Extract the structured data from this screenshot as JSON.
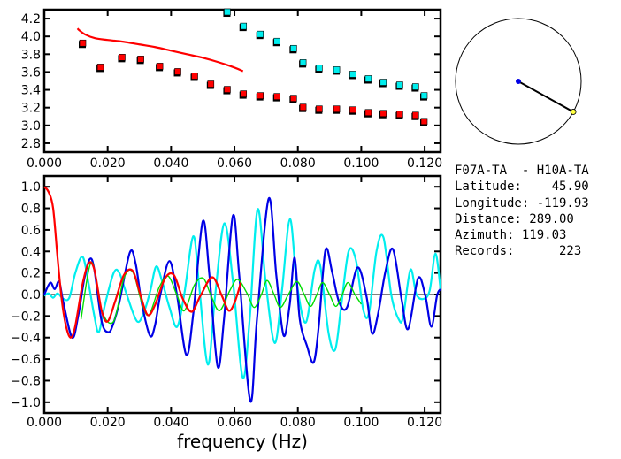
{
  "info": {
    "title": "F07A-TA  - H10A-TA",
    "lines": [
      "Latitude:    45.90",
      "Longitude: -119.93",
      "Distance: 289.00",
      "Azimuth: 119.03",
      "Records:      223"
    ]
  },
  "azimuth_deg": 119.03,
  "colors": {
    "red": "#ff0000",
    "cyan": "#00eeee",
    "blue": "#0000e6",
    "green": "#00dd00",
    "yellow": "#ffff40"
  },
  "chart_data": [
    {
      "type": "scatter",
      "xlim": [
        0,
        0.125
      ],
      "ylim": [
        2.7,
        4.3
      ],
      "x_ticks": [
        "0.000",
        "0.020",
        "0.040",
        "0.060",
        "0.080",
        "0.100",
        "0.120"
      ],
      "y_ticks": [
        "2.8",
        "3.0",
        "3.2",
        "3.4",
        "3.6",
        "3.8",
        "4.0",
        "4.2"
      ],
      "series": [
        {
          "color": "red",
          "mode": "markers",
          "x": [
            0.012,
            0.0176,
            0.0244,
            0.0303,
            0.0363,
            0.042,
            0.0473,
            0.0524,
            0.0576,
            0.0627,
            0.068,
            0.0733,
            0.0785,
            0.0815,
            0.0866,
            0.0921,
            0.0972,
            0.1021,
            0.1068,
            0.112,
            0.117,
            0.1197
          ],
          "y": [
            3.92,
            3.65,
            3.76,
            3.74,
            3.66,
            3.6,
            3.55,
            3.46,
            3.4,
            3.35,
            3.33,
            3.32,
            3.3,
            3.2,
            3.18,
            3.18,
            3.17,
            3.14,
            3.13,
            3.12,
            3.11,
            3.04
          ]
        },
        {
          "color": "cyan",
          "mode": "markers",
          "x": [
            0.0576,
            0.0627,
            0.068,
            0.0733,
            0.0785,
            0.0815,
            0.0866,
            0.0921,
            0.0972,
            0.1021,
            0.1068,
            0.112,
            0.117,
            0.1197
          ],
          "y": [
            4.27,
            4.11,
            4.02,
            3.94,
            3.86,
            3.7,
            3.64,
            3.62,
            3.57,
            3.52,
            3.48,
            3.45,
            3.43,
            3.33
          ]
        },
        {
          "color": "red",
          "mode": "line",
          "x": [
            0.0105,
            0.011,
            0.013,
            0.016,
            0.02,
            0.025,
            0.03,
            0.035,
            0.04,
            0.045,
            0.05,
            0.055,
            0.06,
            0.0627
          ],
          "y": [
            4.09,
            4.07,
            4.02,
            3.98,
            3.96,
            3.94,
            3.91,
            3.88,
            3.84,
            3.8,
            3.76,
            3.71,
            3.65,
            3.61
          ]
        }
      ]
    },
    {
      "type": "line",
      "xlabel": "frequency (Hz)",
      "xlim": [
        0,
        0.125
      ],
      "ylim": [
        -1.1,
        1.1
      ],
      "x_ticks": [
        "0.000",
        "0.020",
        "0.040",
        "0.060",
        "0.080",
        "0.100",
        "0.120"
      ],
      "y_ticks": [
        "-1.0",
        "-0.8",
        "-0.6",
        "-0.4",
        "-0.2",
        "0.0",
        "0.2",
        "0.4",
        "0.6",
        "0.8",
        "1.0"
      ],
      "zero_line": true,
      "series": [
        {
          "color": "cyan",
          "x": [
            0,
            0.0014,
            0.0028,
            0.0042,
            0.006,
            0.0079,
            0.0098,
            0.0121,
            0.014,
            0.0158,
            0.0172,
            0.0191,
            0.0219,
            0.0237,
            0.026,
            0.0293,
            0.0316,
            0.0335,
            0.0353,
            0.0372,
            0.0395,
            0.0419,
            0.0442,
            0.047,
            0.0488,
            0.0516,
            0.0539,
            0.0568,
            0.0596,
            0.0626,
            0.0648,
            0.0673,
            0.0699,
            0.0727,
            0.075,
            0.0775,
            0.0797,
            0.0825,
            0.0853,
            0.0871,
            0.0897,
            0.0918,
            0.0937,
            0.096,
            0.0983,
            0.1007,
            0.1025,
            0.1048,
            0.107,
            0.1095,
            0.1118,
            0.1132,
            0.1155,
            0.1174,
            0.1197,
            0.1216,
            0.1234,
            0.125
          ],
          "y": [
            -0.01,
            0.01,
            -0.03,
            0.01,
            -0.04,
            -0.03,
            0.2,
            0.35,
            0.1,
            -0.2,
            -0.35,
            -0.1,
            0.2,
            0.2,
            0.0,
            -0.25,
            -0.15,
            0.04,
            0.26,
            0.12,
            -0.12,
            -0.3,
            0.01,
            0.54,
            0.1,
            -0.65,
            -0.01,
            0.66,
            0.1,
            -0.77,
            -0.23,
            0.79,
            0.1,
            -0.45,
            0.04,
            0.7,
            0.1,
            -0.26,
            0.23,
            0.26,
            -0.36,
            -0.51,
            -0.1,
            0.4,
            0.32,
            -0.15,
            -0.16,
            0.4,
            0.53,
            -0.01,
            -0.23,
            -0.21,
            0.23,
            0.0,
            -0.04,
            0.04,
            0.38,
            0.05
          ]
        },
        {
          "color": "blue",
          "x": [
            0,
            0.0019,
            0.0033,
            0.0047,
            0.006,
            0.0088,
            0.0107,
            0.0126,
            0.0144,
            0.0158,
            0.0181,
            0.0203,
            0.0219,
            0.0237,
            0.027,
            0.0288,
            0.0307,
            0.0333,
            0.0349,
            0.0367,
            0.0395,
            0.0419,
            0.0448,
            0.047,
            0.05,
            0.0521,
            0.0547,
            0.0567,
            0.0595,
            0.0615,
            0.065,
            0.0671,
            0.0708,
            0.0732,
            0.0755,
            0.0774,
            0.079,
            0.0806,
            0.0829,
            0.085,
            0.0866,
            0.0887,
            0.0908,
            0.093,
            0.0955,
            0.0988,
            0.1016,
            0.1034,
            0.1053,
            0.1076,
            0.11,
            0.1127,
            0.1148,
            0.1179,
            0.1202,
            0.1221,
            0.1239,
            0.125
          ],
          "y": [
            0.0,
            0.11,
            0.05,
            0.12,
            -0.07,
            -0.4,
            -0.2,
            0.14,
            0.33,
            0.23,
            -0.25,
            -0.35,
            -0.26,
            -0.07,
            0.39,
            0.29,
            -0.07,
            -0.38,
            -0.29,
            0.01,
            0.31,
            -0.01,
            -0.56,
            -0.18,
            0.68,
            0.18,
            -0.67,
            -0.23,
            0.73,
            0.18,
            -0.99,
            -0.23,
            0.89,
            0.18,
            -0.38,
            -0.1,
            0.34,
            -0.23,
            -0.48,
            -0.63,
            -0.29,
            0.41,
            0.21,
            -0.07,
            -0.12,
            0.25,
            -0.01,
            -0.36,
            -0.18,
            0.21,
            0.42,
            -0.04,
            -0.32,
            0.15,
            -0.01,
            -0.3,
            -0.01,
            0.05
          ]
        },
        {
          "color": "green",
          "x": [
            0.0116,
            0.0149,
            0.0181,
            0.0219,
            0.0251,
            0.0279,
            0.0307,
            0.033,
            0.0363,
            0.0391,
            0.0419,
            0.0442,
            0.0474,
            0.0502,
            0.0526,
            0.0553,
            0.0586,
            0.061,
            0.064,
            0.0662,
            0.0685,
            0.0703,
            0.0725,
            0.0745,
            0.077,
            0.0797,
            0.082,
            0.084,
            0.086,
            0.0878,
            0.09,
            0.092,
            0.094,
            0.0958,
            0.098,
            0.1
          ],
          "y": [
            -0.23,
            0.3,
            -0.15,
            -0.25,
            0.15,
            0.21,
            -0.07,
            -0.19,
            0.07,
            0.17,
            -0.01,
            -0.15,
            0.09,
            0.15,
            -0.01,
            -0.15,
            0.04,
            0.14,
            0.01,
            -0.12,
            0.0,
            0.13,
            0.0,
            -0.12,
            0.0,
            0.12,
            0.0,
            -0.11,
            0.0,
            0.11,
            0.0,
            -0.11,
            0.0,
            0.11,
            0.0,
            -0.09
          ]
        },
        {
          "color": "red",
          "x": [
            0,
            0.0014,
            0.0028,
            0.0042,
            0.0056,
            0.007,
            0.0084,
            0.0098,
            0.0121,
            0.014,
            0.0158,
            0.0181,
            0.02,
            0.0223,
            0.0251,
            0.0279,
            0.0302,
            0.0326,
            0.0349,
            0.0381,
            0.0409,
            0.0437,
            0.0465,
            0.0493,
            0.053,
            0.056,
            0.0582,
            0.0601,
            0.062
          ],
          "y": [
            1.0,
            0.95,
            0.8,
            0.34,
            -0.07,
            -0.31,
            -0.4,
            -0.29,
            0.1,
            0.29,
            0.23,
            -0.15,
            -0.25,
            -0.07,
            0.18,
            0.22,
            0.01,
            -0.19,
            -0.1,
            0.15,
            0.18,
            -0.04,
            -0.16,
            -0.01,
            0.16,
            -0.01,
            -0.15,
            -0.07,
            0.11
          ]
        }
      ]
    }
  ]
}
